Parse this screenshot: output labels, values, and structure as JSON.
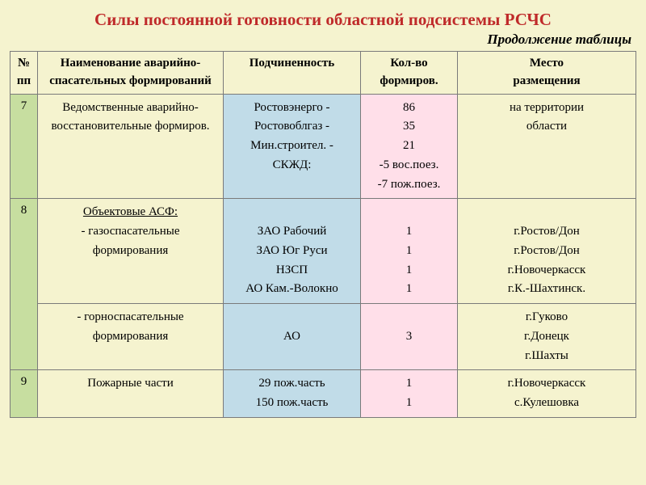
{
  "title": "Силы постоянной готовности областной подсистемы РСЧС",
  "subtitle": "Продолжение таблицы",
  "headers": {
    "num": "№\nпп",
    "name": "Наименование аварийно-\nспасательных формирований",
    "sub": "Подчиненность",
    "cnt": "Кол-во\nформиров.",
    "loc": "Место\nразмещения"
  },
  "r7": {
    "num": "7",
    "name_l1": "Ведомственные аварийно-",
    "name_l2": "восстановительные формиров.",
    "sub_l1": "Ростовэнерго -",
    "sub_l2": "Ростовоблгаз -",
    "sub_l3": "Мин.строител. -",
    "sub_l4": "СКЖД:",
    "cnt_l1": "86",
    "cnt_l2": "35",
    "cnt_l3": "21",
    "cnt_l4": "-5 вос.поез.",
    "cnt_l5": "-7 пож.поез.",
    "loc_l1": "на территории",
    "loc_l2": "области"
  },
  "r8a": {
    "num": "8",
    "name_head": "Объектовые АСФ:",
    "name_l1": "- газоспасательные",
    "name_l2": "формирования",
    "sub_l1": "ЗАО Рабочий",
    "sub_l2": "ЗАО Юг Руси",
    "sub_l3": "НЗСП",
    "sub_l4": "АО Кам.-Волокно",
    "cnt_l1": "1",
    "cnt_l2": "1",
    "cnt_l3": "1",
    "cnt_l4": "1",
    "loc_l1": "г.Ростов/Дон",
    "loc_l2": "г.Ростов/Дон",
    "loc_l3": "г.Новочеркасск",
    "loc_l4": "г.К.-Шахтинск."
  },
  "r8b": {
    "name_l1": "- горноспасательные",
    "name_l2": "формирования",
    "sub_l1": "АО",
    "cnt_l1": "3",
    "loc_l1": "г.Гуково",
    "loc_l2": "г.Донецк",
    "loc_l3": "г.Шахты"
  },
  "r9": {
    "num": "9",
    "name_l1": "Пожарные части",
    "sub_l1": "29 пож.часть",
    "sub_l2": "150 пож.часть",
    "cnt_l1": "1",
    "cnt_l2": "1",
    "loc_l1": "г.Новочеркасск",
    "loc_l2": "с.Кулешовка"
  },
  "colors": {
    "page_bg": "#f5f3cf",
    "title": "#bf2a2a",
    "num_bg": "#c7dea0",
    "sub_bg": "#c1dce8",
    "cnt_bg": "#ffdfe9",
    "border": "#7a7a7a"
  },
  "fonts": {
    "title_pt": 21,
    "subtitle_pt": 17,
    "cell_pt": 15,
    "family": "Times New Roman"
  }
}
